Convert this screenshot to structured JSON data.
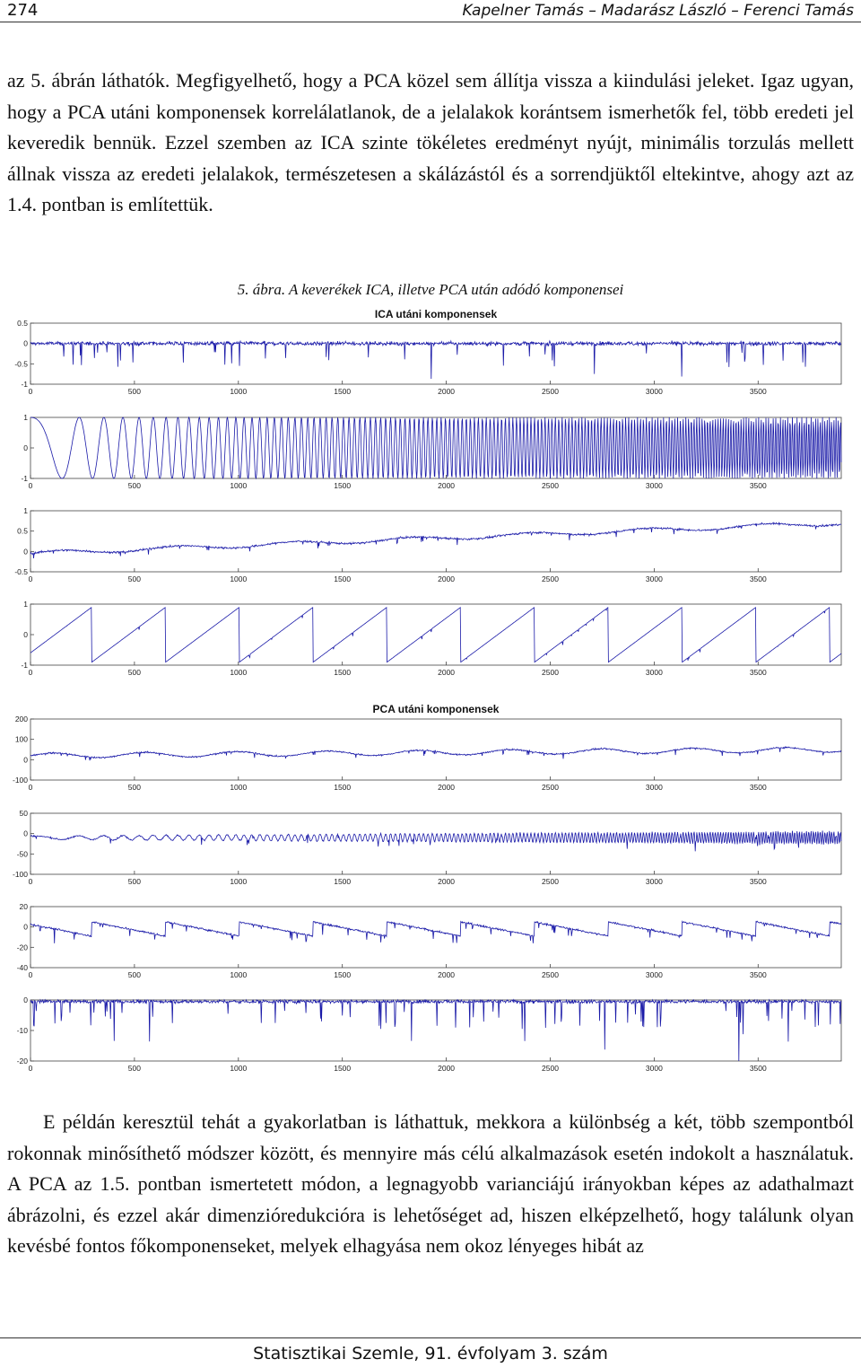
{
  "header": {
    "page_number": "274",
    "running_head": "Kapelner Tamás – Madarász László – Ferenci Tamás"
  },
  "paragraph1": "az 5. ábrán láthatók. Megfigyelhető, hogy a PCA közel sem állítja vissza a kiindulási jeleket. Igaz ugyan, hogy a PCA utáni komponensek korrelálatlanok, de a jelalakok korántsem ismerhetők fel, több eredeti jel keveredik bennük. Ezzel szemben az ICA szinte tökéletes eredményt nyújt, minimális torzulás mellett állnak vissza az eredeti jelalakok, természetesen a skálázástól és a sorrendjüktől eltekintve, ahogy azt az 1.4. pontban is említettük.",
  "caption": {
    "label": "5. ábra.",
    "text": "A keverékek ICA, illetve PCA után adódó komponensei"
  },
  "chart_data": [
    {
      "type": "line",
      "title": "ICA utáni komponensek",
      "xlim": [
        0,
        3900
      ],
      "x_ticks": [
        "0",
        "500",
        "1000",
        "1500",
        "2000",
        "2500",
        "3000",
        "3500"
      ],
      "series_color": "#1a1aa8",
      "panels": [
        {
          "signal": "sparse-spikes",
          "ylim": [
            -1,
            0.5
          ],
          "y_ticks": [
            "0.5",
            "0",
            "-0.5",
            "-1"
          ]
        },
        {
          "signal": "chirp",
          "ylim": [
            -1,
            1
          ],
          "y_ticks": [
            "1",
            "0",
            "-1"
          ]
        },
        {
          "signal": "noisy-trend",
          "ylim": [
            -0.5,
            1
          ],
          "y_ticks": [
            "1",
            "0.5",
            "0",
            "-0.5"
          ]
        },
        {
          "signal": "sawtooth",
          "ylim": [
            -1,
            1
          ],
          "y_ticks": [
            "1",
            "0",
            "-1"
          ]
        }
      ]
    },
    {
      "type": "line",
      "title": "PCA utáni komponensek",
      "xlim": [
        0,
        3900
      ],
      "x_ticks": [
        "0",
        "500",
        "1000",
        "1500",
        "2000",
        "2500",
        "3000",
        "3500"
      ],
      "series_color": "#1a1aa8",
      "panels": [
        {
          "signal": "mixed-trend",
          "ylim": [
            -100,
            200
          ],
          "y_ticks": [
            "200",
            "100",
            "0",
            "-100"
          ]
        },
        {
          "signal": "mixed-chirp",
          "ylim": [
            -100,
            50
          ],
          "y_ticks": [
            "50",
            "0",
            "-50",
            "-100"
          ]
        },
        {
          "signal": "mixed-sawtooth",
          "ylim": [
            -40,
            20
          ],
          "y_ticks": [
            "20",
            "0",
            "-20",
            "-40"
          ]
        },
        {
          "signal": "mixed-spikes",
          "ylim": [
            -20,
            0
          ],
          "y_ticks": [
            "0",
            "-10",
            "-20"
          ]
        }
      ]
    }
  ],
  "paragraph2": "E példán keresztül tehát a gyakorlatban is láthattuk, mekkora a különbség a két, több szempontból rokonnak minősíthető módszer között, és mennyire más célú alkalmazások esetén indokolt a használatuk. A PCA az 1.5. pontban ismertetett módon, a legnagyobb varianciájú irányokban képes az adathalmazt ábrázolni, és ezzel akár dimenzióredukcióra is lehetőséget ad, hiszen elképzelhető, hogy találunk olyan kevésbé fontos főkomponenseket, melyek elhagyása nem okoz lényeges hibát az",
  "footer": {
    "journal": "Statisztikai Szemle, 91. évfolyam 3. szám"
  }
}
